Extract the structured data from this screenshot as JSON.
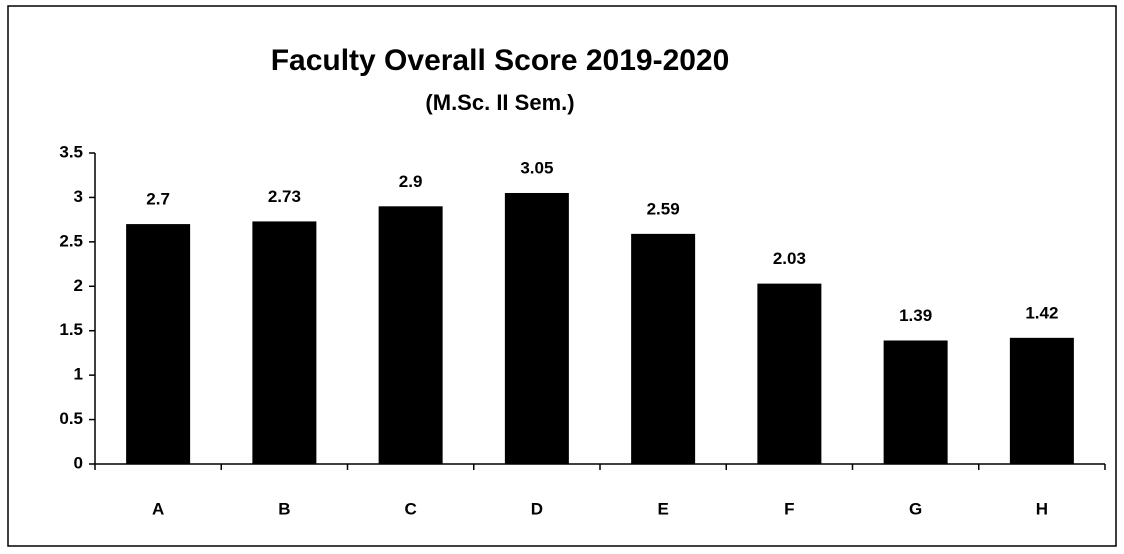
{
  "chart_data": {
    "type": "bar",
    "title": "Faculty Overall Score 2019-2020",
    "subtitle": "(M.Sc. II Sem.)",
    "categories": [
      "A",
      "B",
      "C",
      "D",
      "E",
      "F",
      "G",
      "H"
    ],
    "values": [
      2.7,
      2.73,
      2.9,
      3.05,
      2.59,
      2.03,
      1.39,
      1.42
    ],
    "color": "#000000",
    "ylim": [
      0,
      3.5
    ],
    "yticks": [
      0,
      0.5,
      1,
      1.5,
      2,
      2.5,
      3,
      3.5
    ],
    "grid": false
  }
}
